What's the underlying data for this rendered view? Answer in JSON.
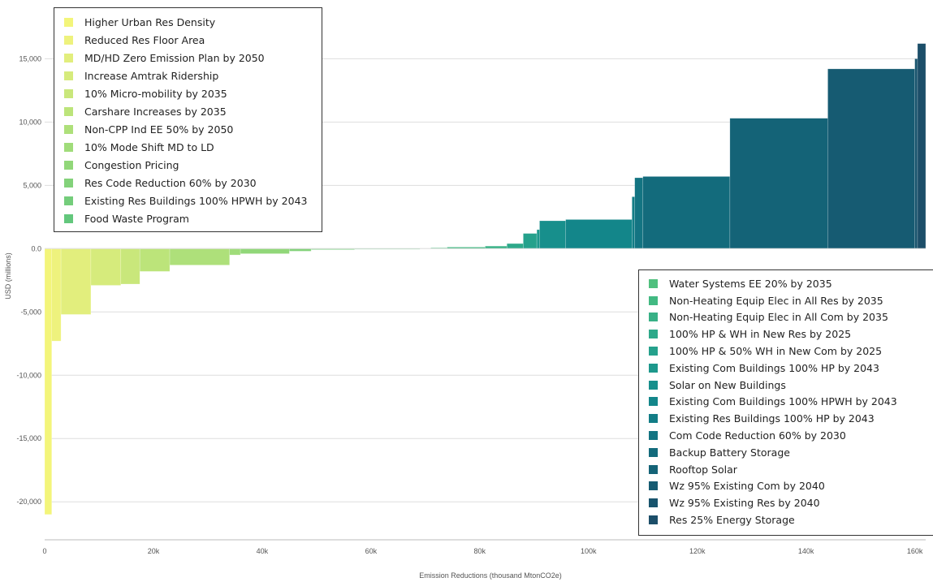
{
  "chart_data": {
    "type": "bar",
    "subtype": "marginal-abatement-cost-curve",
    "xlabel": "Emission Reductions (thousand MtonCO2e)",
    "ylabel": "USD (millions)",
    "xlim": [
      0,
      162000
    ],
    "ylim": [
      -23000,
      19000
    ],
    "x_ticks": [
      0,
      20000,
      40000,
      60000,
      80000,
      100000,
      120000,
      140000,
      160000
    ],
    "x_tick_labels": [
      "0",
      "20k",
      "40k",
      "60k",
      "80k",
      "100k",
      "120k",
      "140k",
      "160k"
    ],
    "y_ticks": [
      15000,
      10000,
      5000,
      0,
      -5000,
      -10000,
      -15000,
      -20000
    ],
    "y_tick_labels": [
      "15,000",
      "10,000",
      "5,000",
      "0.0",
      "-5,000",
      "-10,000",
      "-15,000",
      "-20,000"
    ],
    "grid": "horizontal",
    "legend_placement": [
      "top-left",
      "bottom-right"
    ],
    "series": [
      {
        "name": "Higher Urban Res Density",
        "color": "#f3f57a",
        "x_start": 0,
        "x_end": 1300,
        "value": -21000
      },
      {
        "name": "Reduced Res Floor Area",
        "color": "#eef27d",
        "x_start": 1300,
        "x_end": 3000,
        "value": -7300
      },
      {
        "name": "MD/HD Zero Emission Plan by 2050",
        "color": "#e2ee7d",
        "x_start": 3000,
        "x_end": 8500,
        "value": -5200
      },
      {
        "name": "Increase Amtrak Ridership",
        "color": "#d6eb7c",
        "x_start": 8500,
        "x_end": 14000,
        "value": -2900
      },
      {
        "name": "10% Micro-mobility by 2035",
        "color": "#c9e77b",
        "x_start": 14000,
        "x_end": 17500,
        "value": -2800
      },
      {
        "name": "Carshare Increases by 2035",
        "color": "#bce47a",
        "x_start": 17500,
        "x_end": 23000,
        "value": -1800
      },
      {
        "name": "Non-CPP Ind EE 50% by 2050",
        "color": "#aee07a",
        "x_start": 23000,
        "x_end": 34000,
        "value": -1300
      },
      {
        "name": "10% Mode Shift MD to LD",
        "color": "#a0dc7a",
        "x_start": 34000,
        "x_end": 36000,
        "value": -500
      },
      {
        "name": "Congestion Pricing",
        "color": "#91d779",
        "x_start": 36000,
        "x_end": 45000,
        "value": -400
      },
      {
        "name": "Res Code Reduction 60% by 2030",
        "color": "#83d27a",
        "x_start": 45000,
        "x_end": 49000,
        "value": -200
      },
      {
        "name": "Existing Res Buildings 100% HPWH by 2043",
        "color": "#74cd7b",
        "x_start": 49000,
        "x_end": 57000,
        "value": -80
      },
      {
        "name": "Food Waste Program",
        "color": "#63c77c",
        "x_start": 57000,
        "x_end": 69000,
        "value": -40
      },
      {
        "name": "Water Systems EE 20% by 2035",
        "color": "#50c07e",
        "x_start": 71000,
        "x_end": 74000,
        "value": 70
      },
      {
        "name": "Non-Heating Equip Elec in All Res by 2035",
        "color": "#42b982",
        "x_start": 74000,
        "x_end": 81000,
        "value": 120
      },
      {
        "name": "Non-Heating Equip Elec in All Com by 2035",
        "color": "#38b186",
        "x_start": 81000,
        "x_end": 85000,
        "value": 200
      },
      {
        "name": "100% HP & WH in New Res by 2025",
        "color": "#2ea98a",
        "x_start": 85000,
        "x_end": 88000,
        "value": 400
      },
      {
        "name": "100% HP & 50% WH in New Com by 2025",
        "color": "#25a18c",
        "x_start": 88000,
        "x_end": 90500,
        "value": 1200
      },
      {
        "name": "Existing Com Buildings 100% HP by 2043",
        "color": "#1d988c",
        "x_start": 90500,
        "x_end": 91000,
        "value": 1500
      },
      {
        "name": "Solar on New Buildings",
        "color": "#178f8c",
        "x_start": 91000,
        "x_end": 95800,
        "value": 2200
      },
      {
        "name": "Existing Com Buildings 100% HPWH by 2043",
        "color": "#13868a",
        "x_start": 95800,
        "x_end": 108000,
        "value": 2300
      },
      {
        "name": "Existing Res Buildings 100% HP by 2043",
        "color": "#127d86",
        "x_start": 108000,
        "x_end": 108500,
        "value": 4100
      },
      {
        "name": "Com Code Reduction 60% by 2030",
        "color": "#137482",
        "x_start": 108500,
        "x_end": 110000,
        "value": 5600
      },
      {
        "name": "Backup Battery Storage",
        "color": "#136b7c",
        "x_start": 110000,
        "x_end": 126000,
        "value": 5700
      },
      {
        "name": "Rooftop Solar",
        "color": "#146377",
        "x_start": 126000,
        "x_end": 144000,
        "value": 10300
      },
      {
        "name": "Wz 95% Existing Com by 2040",
        "color": "#165b72",
        "x_start": 144000,
        "x_end": 160000,
        "value": 14200
      },
      {
        "name": "Wz 95% Existing Res by 2040",
        "color": "#18546d",
        "x_start": 160000,
        "x_end": 160500,
        "value": 15000
      },
      {
        "name": "Res 25% Energy Storage",
        "color": "#1c4e69",
        "x_start": 160500,
        "x_end": 162000,
        "value": 16200
      }
    ]
  }
}
